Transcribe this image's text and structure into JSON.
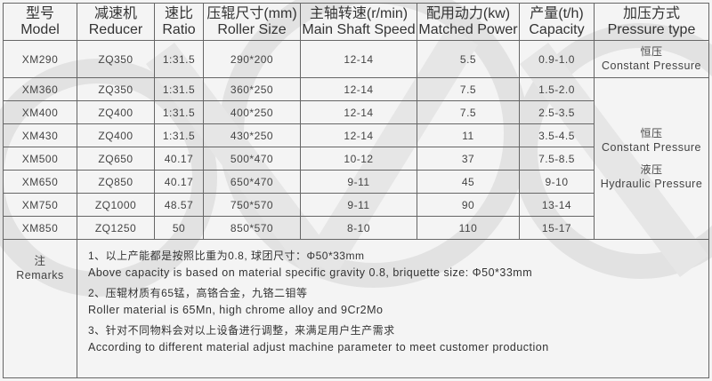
{
  "headers": [
    {
      "zh": "型号",
      "en": "Model"
    },
    {
      "zh": "减速机",
      "en": "Reducer"
    },
    {
      "zh": "速比",
      "en": "Ratio"
    },
    {
      "zh": "压辊尺寸(mm)",
      "en": "Roller Size"
    },
    {
      "zh": "主轴转速(r/min)",
      "en": "Main Shaft Speed"
    },
    {
      "zh": "配用动力(kw)",
      "en": "Matched Power"
    },
    {
      "zh": "产量(t/h)",
      "en": "Capacity"
    },
    {
      "zh": "加压方式",
      "en": "Pressure type"
    }
  ],
  "rows": [
    [
      "XM290",
      "ZQ350",
      "1:31.5",
      "290*200",
      "12-14",
      "5.5",
      "0.9-1.0"
    ],
    [
      "XM360",
      "ZQ350",
      "1:31.5",
      "360*250",
      "12-14",
      "7.5",
      "1.5-2.0"
    ],
    [
      "XM400",
      "ZQ400",
      "1:31.5",
      "400*250",
      "12-14",
      "7.5",
      "2.5-3.5"
    ],
    [
      "XM430",
      "ZQ400",
      "1:31.5",
      "430*250",
      "12-14",
      "11",
      "3.5-4.5"
    ],
    [
      "XM500",
      "ZQ650",
      "40.17",
      "500*470",
      "10-12",
      "37",
      "7.5-8.5"
    ],
    [
      "XM650",
      "ZQ850",
      "40.17",
      "650*470",
      "9-11",
      "45",
      "9-10"
    ],
    [
      "XM750",
      "ZQ1000",
      "48.57",
      "750*570",
      "9-11",
      "90",
      "13-14"
    ],
    [
      "XM850",
      "ZQ1250",
      "50",
      "850*570",
      "8-10",
      "110",
      "15-17"
    ]
  ],
  "pressure": {
    "first": {
      "zh": "恒压",
      "en": "Constant Pressure"
    },
    "rest": [
      {
        "zh": "恒压",
        "en": "Constant Pressure"
      },
      {
        "zh": "液压",
        "en": "Hydraulic Pressure"
      }
    ]
  },
  "remarks": {
    "label_zh": "注",
    "label_en": "Remarks",
    "items": [
      {
        "zh": "1、以上产能都是按照比重为0.8, 球团尺寸：Φ50*33mm",
        "en": "Above capacity is based on material specific gravity 0.8, briquette size:  Φ50*33mm"
      },
      {
        "zh": "2、压辊材质有65锰，高铬合金，九铬二钼等",
        "en": "Roller material is 65Mn, high chrome alloy and 9Cr2Mo"
      },
      {
        "zh": "3、针对不同物料会对以上设备进行调整，来满足用户生产需求",
        "en": "According to different material adjust machine parameter to meet customer production"
      }
    ]
  },
  "colors": {
    "border": "#666666",
    "background": "#f4f4f4",
    "watermark": "#dedede"
  }
}
